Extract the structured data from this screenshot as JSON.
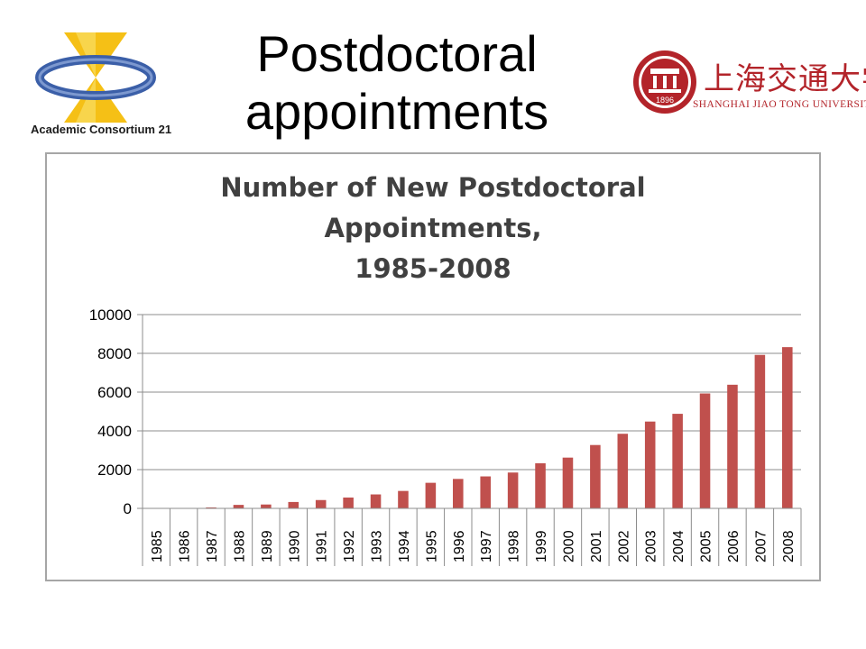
{
  "slide": {
    "title_line1": "Postdoctoral",
    "title_line2": "appointments"
  },
  "logos": {
    "left_text": "Academic Consortium 21",
    "right_cn": "上海交通大学",
    "right_en": "SHANGHAI JIAO TONG UNIVERSITY",
    "right_seal_year": "1896",
    "left_colors": {
      "gold": "#f5c016",
      "blue": "#3b5fa8"
    },
    "right_color": "#b3242a"
  },
  "chart_data": {
    "type": "bar",
    "title": [
      "Number of New Postdoctoral",
      "Appointments,",
      "1985-2008"
    ],
    "xlabel": "",
    "ylabel": "",
    "ylim": [
      0,
      10000
    ],
    "yticks": [
      0,
      2000,
      4000,
      6000,
      8000,
      10000
    ],
    "grid": true,
    "legend": "none",
    "bar_color": "#c0504d",
    "categories": [
      "1985",
      "1986",
      "1987",
      "1988",
      "1989",
      "1990",
      "1991",
      "1992",
      "1993",
      "1994",
      "1995",
      "1996",
      "1997",
      "1998",
      "1999",
      "2000",
      "2001",
      "2002",
      "2003",
      "2004",
      "2005",
      "2006",
      "2007",
      "2008"
    ],
    "values": [
      0,
      0,
      50,
      180,
      200,
      330,
      430,
      560,
      720,
      900,
      1320,
      1520,
      1650,
      1850,
      2330,
      2620,
      3270,
      3850,
      4480,
      4880,
      5930,
      6380,
      7920,
      8320
    ]
  }
}
